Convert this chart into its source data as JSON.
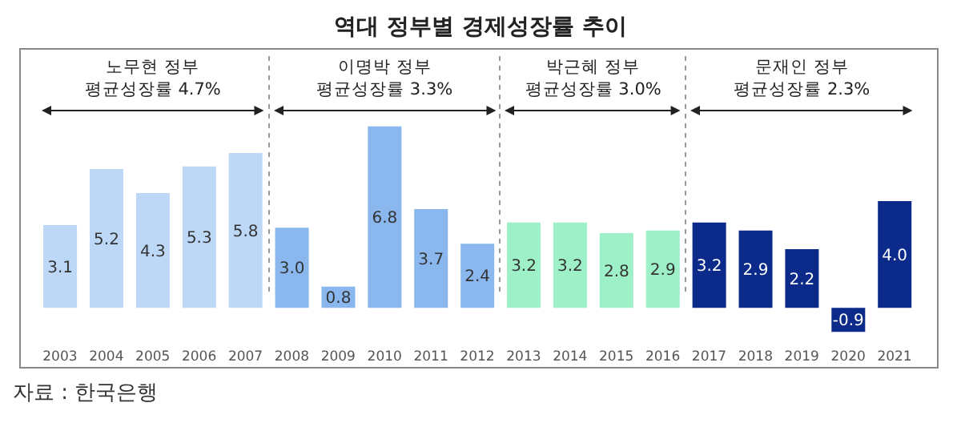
{
  "chart_data": {
    "type": "bar",
    "title": "역대 정부별 경제성장률 추이",
    "categories": [
      "2003",
      "2004",
      "2005",
      "2006",
      "2007",
      "2008",
      "2009",
      "2010",
      "2011",
      "2012",
      "2013",
      "2014",
      "2015",
      "2016",
      "2017",
      "2018",
      "2019",
      "2020",
      "2021"
    ],
    "values": [
      3.1,
      5.2,
      4.3,
      5.3,
      5.8,
      3.0,
      0.8,
      6.8,
      3.7,
      2.4,
      3.2,
      3.2,
      2.8,
      2.9,
      3.2,
      2.9,
      2.2,
      -0.9,
      4.0
    ],
    "colors": [
      "#bdd7f7",
      "#bdd7f7",
      "#bdd7f7",
      "#bdd7f7",
      "#bdd7f7",
      "#8ab8ee",
      "#8ab8ee",
      "#8ab8ee",
      "#8ab8ee",
      "#8ab8ee",
      "#9ef0c8",
      "#9ef0c8",
      "#9ef0c8",
      "#9ef0c8",
      "#0b2a8a",
      "#0b2a8a",
      "#0b2a8a",
      "#0b2a8a",
      "#0b2a8a"
    ],
    "value_labels": [
      "3.1",
      "5.2",
      "4.3",
      "5.3",
      "5.8",
      "3.0",
      "0.8",
      "6.8",
      "3.7",
      "2.4",
      "3.2",
      "3.2",
      "2.8",
      "2.9",
      "3.2",
      "2.9",
      "2.2",
      "-0.9",
      "4.0"
    ],
    "annotations": [
      "노무현 정부\n평균성장률 4.7%",
      "이명박 정부\n평균성장률 3.3%",
      "박근혜 정부\n평균성장률 3.0%",
      "문재인 정부\n평균성장률 2.3%",
      "자료 : 한국은행"
    ]
  }
}
